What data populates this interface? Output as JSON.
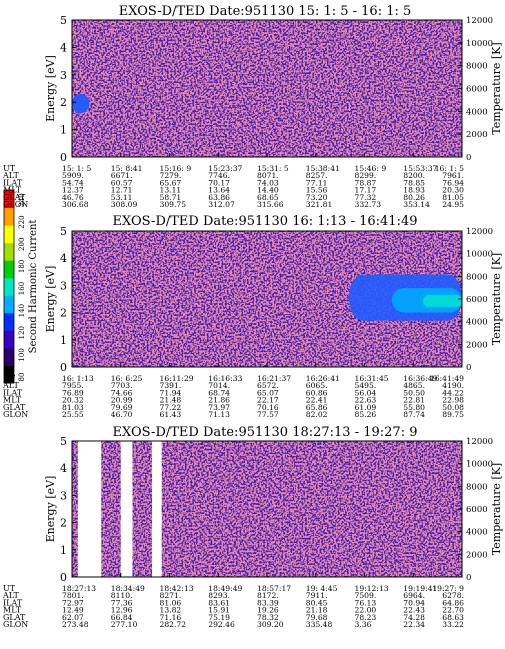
{
  "colorbar": {
    "label": "Second Harmonic Current",
    "ticks": [
      "80",
      "100",
      "120",
      "140",
      "160",
      "180",
      "200",
      "220",
      "240"
    ],
    "colors": [
      "#000000",
      "#2a0066",
      "#3a00c8",
      "#0030ff",
      "#00b0ff",
      "#00e8c0",
      "#00d000",
      "#a0e000",
      "#ffff00",
      "#ffa000",
      "#ff0000"
    ]
  },
  "chart_data": [
    {
      "type": "heatmap",
      "title": "EXOS-D/TED   Date:951130  15: 1: 5 - 16: 1: 5",
      "ylabel": "Energy [eV]",
      "y2label": "Temperature [K]",
      "ylim": [
        0,
        5
      ],
      "yticks": [
        "0",
        "1",
        "2",
        "3",
        "4",
        "5"
      ],
      "y2lim": [
        0,
        12000
      ],
      "y2ticks": [
        "0",
        "2000",
        "4000",
        "6000",
        "8000",
        "10000",
        "12000"
      ],
      "background_color": "#3a20c0",
      "features": [
        {
          "kind": "blob",
          "color": "#1f5cff",
          "x_frac": [
            0.0,
            0.045
          ],
          "energy": [
            1.6,
            2.3
          ]
        }
      ],
      "table": {
        "labels": [
          "UT",
          "ALT",
          "ILAT",
          "MLT",
          "GLAT",
          "GLON"
        ],
        "columns": [
          [
            "15: 1: 5",
            "5909.",
            "54.74",
            "12.37",
            "46.76",
            "306.68"
          ],
          [
            "15: 8:41",
            "6671.",
            "60.57",
            "12.71",
            "53.11",
            "308.09"
          ],
          [
            "15:16: 9",
            "7279.",
            "65.67",
            "13.11",
            "58.71",
            "309.75"
          ],
          [
            "15:23:37",
            "7746.",
            "70.17",
            "13.64",
            "63.86",
            "312.07"
          ],
          [
            "15:31: 5",
            "8071.",
            "74.03",
            "14.40",
            "68.65",
            "315.66"
          ],
          [
            "15:38:41",
            "8257.",
            "77.11",
            "15.56",
            "73.20",
            "321.81"
          ],
          [
            "15:46: 9",
            "8299.",
            "78.87",
            "17.17",
            "77.32",
            "332.73"
          ],
          [
            "15:53:37",
            "8200.",
            "78.85",
            "18.93",
            "80.26",
            "353.14"
          ],
          [
            "16: 1: 5",
            "7961.",
            "76.94",
            "20.30",
            "81.05",
            "24.95"
          ]
        ]
      }
    },
    {
      "type": "heatmap",
      "title": "EXOS-D/TED   Date:951130  16: 1:13 - 16:41:49",
      "ylabel": "Energy [eV]",
      "y2label": "Temperature [K]",
      "ylim": [
        0,
        5
      ],
      "yticks": [
        "0",
        "1",
        "2",
        "3",
        "4",
        "5"
      ],
      "y2lim": [
        0,
        12000
      ],
      "y2ticks": [
        "0",
        "2000",
        "4000",
        "6000",
        "8000",
        "10000",
        "12000"
      ],
      "background_color": "#3a20c0",
      "features": [
        {
          "kind": "band",
          "color": "#1f5cff",
          "x_frac": [
            0.71,
            1.0
          ],
          "energy": [
            1.7,
            3.4
          ]
        },
        {
          "kind": "band",
          "color": "#00a8ff",
          "x_frac": [
            0.82,
            1.0
          ],
          "energy": [
            2.0,
            2.9
          ]
        },
        {
          "kind": "band",
          "color": "#00e0d0",
          "x_frac": [
            0.9,
            1.0
          ],
          "energy": [
            2.2,
            2.65
          ]
        }
      ],
      "table": {
        "labels": [
          "UT",
          "ALT",
          "ILAT",
          "MLT",
          "GLAT",
          "GLON"
        ],
        "columns": [
          [
            "16: 1:13",
            "7955.",
            "76.89",
            "20.32",
            "81.03",
            "25.55"
          ],
          [
            "16: 6:25",
            "7703.",
            "74.66",
            "20.99",
            "79.69",
            "46.70"
          ],
          [
            "16:11:29",
            "7391.",
            "71.94",
            "21.48",
            "77.22",
            "61.43"
          ],
          [
            "16:16:33",
            "7014.",
            "68.74",
            "21.86",
            "73.97",
            "71.13"
          ],
          [
            "16:21:37",
            "6572.",
            "65.07",
            "22.17",
            "70.16",
            "77.57"
          ],
          [
            "16:26:41",
            "6065.",
            "60.86",
            "22.41",
            "65.86",
            "82.02"
          ],
          [
            "16:31:45",
            "5495.",
            "56.04",
            "22.63",
            "61.09",
            "85.26"
          ],
          [
            "16:36:49",
            "4865.",
            "50.50",
            "22.81",
            "55.80",
            "87.74"
          ],
          [
            "16:41:49",
            "4190.",
            "44.22",
            "22.98",
            "50.08",
            "89.75"
          ]
        ]
      }
    },
    {
      "type": "heatmap",
      "title": "EXOS-D/TED   Date:951130  18:27:13 - 19:27: 9",
      "ylabel": "Energy [eV]",
      "y2label": "Temperature [K]",
      "ylim": [
        0,
        5
      ],
      "yticks": [
        "0",
        "1",
        "2",
        "3",
        "4",
        "5"
      ],
      "y2lim": [
        0,
        12000
      ],
      "y2ticks": [
        "0",
        "2000",
        "4000",
        "6000",
        "8000",
        "10000",
        "12000"
      ],
      "background_color": "#3a20c0",
      "features": [
        {
          "kind": "gap",
          "color": "#ffffff",
          "x_frac": [
            0.015,
            0.075
          ],
          "energy": [
            0,
            5
          ]
        },
        {
          "kind": "gap",
          "color": "#ffffff",
          "x_frac": [
            0.125,
            0.155
          ],
          "energy": [
            0,
            5
          ]
        },
        {
          "kind": "gap",
          "color": "#ffffff",
          "x_frac": [
            0.205,
            0.23
          ],
          "energy": [
            0,
            5
          ]
        }
      ],
      "table": {
        "labels": [
          "UT",
          "ALT",
          "ILAT",
          "MLT",
          "GLAT",
          "GLON"
        ],
        "columns": [
          [
            "18:27:13",
            "7801.",
            "72.97",
            "12.49",
            "62.07",
            "273.48"
          ],
          [
            "18:34:49",
            "8110.",
            "77.36",
            "12.96",
            "66.84",
            "277.10"
          ],
          [
            "18:42:13",
            "8271.",
            "81.06",
            "13.82",
            "71.16",
            "282.72"
          ],
          [
            "18:49:49",
            "8293.",
            "83.61",
            "15.91",
            "75.19",
            "292.46"
          ],
          [
            "18:57:17",
            "8172.",
            "83.39",
            "19.26",
            "78.32",
            "309.20"
          ],
          [
            "19: 4:45",
            "7911.",
            "80.45",
            "21.18",
            "79.68",
            "335.48"
          ],
          [
            "19:12:13",
            "7509.",
            "76.13",
            "22.00",
            "78.23",
            "3.36"
          ],
          [
            "19:19:41",
            "6964.",
            "70.94",
            "22.43",
            "74.28",
            "22.34"
          ],
          [
            "19:27: 9",
            "6278.",
            "64.86",
            "22.70",
            "68.63",
            "33.22"
          ]
        ]
      }
    }
  ]
}
